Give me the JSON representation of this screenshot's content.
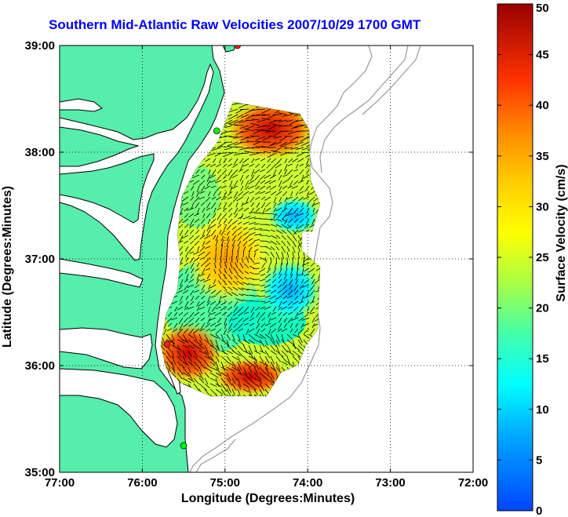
{
  "title": "Southern Mid-Atlantic Raw Velocities 2007/10/29 1700 GMT",
  "xlabel": "Longitude (Degrees:Minutes)",
  "ylabel": "Latitude (Degrees:Minutes)",
  "colorbar_label": "Surface Velocity (cm/s)",
  "x_ticks": [
    "77:00",
    "76:00",
    "75:00",
    "74:00",
    "73:00",
    "72:00"
  ],
  "y_ticks": [
    "39:00",
    "38:00",
    "37:00",
    "36:00",
    "35:00"
  ],
  "colorbar_ticks": [
    "0",
    "5",
    "10",
    "15",
    "20",
    "25",
    "30",
    "35",
    "40",
    "45",
    "50"
  ],
  "colors": {
    "land": "#55eeaa",
    "coast": "#000000",
    "title": "#0000ff",
    "site": "#00ff00",
    "site_alt": "#ff2020"
  },
  "chart_data": {
    "type": "heatmap",
    "title": "Southern Mid-Atlantic Raw Velocities 2007/10/29 1700 GMT",
    "xlabel": "Longitude (Degrees:Minutes)",
    "ylabel": "Latitude (Degrees:Minutes)",
    "xlim": [
      -77.0,
      -72.0
    ],
    "ylim": [
      35.0,
      39.0
    ],
    "clim": [
      0,
      50
    ],
    "grid": true,
    "colormap": "jet",
    "colorbar": "right",
    "regions": [
      {
        "lon": -74.5,
        "lat": 38.2,
        "speed": 45
      },
      {
        "lon": -74.8,
        "lat": 37.5,
        "speed": 25
      },
      {
        "lon": -75.0,
        "lat": 36.9,
        "speed": 35
      },
      {
        "lon": -74.2,
        "lat": 36.6,
        "speed": 10
      },
      {
        "lon": -74.6,
        "lat": 35.9,
        "speed": 40
      }
    ],
    "sites": [
      {
        "lon": -74.85,
        "lat": 39.0,
        "color": "red"
      },
      {
        "lon": -75.1,
        "lat": 38.2,
        "color": "green"
      },
      {
        "lon": -75.7,
        "lat": 36.2,
        "color": "red"
      },
      {
        "lon": -75.5,
        "lat": 35.25,
        "color": "green"
      }
    ]
  }
}
